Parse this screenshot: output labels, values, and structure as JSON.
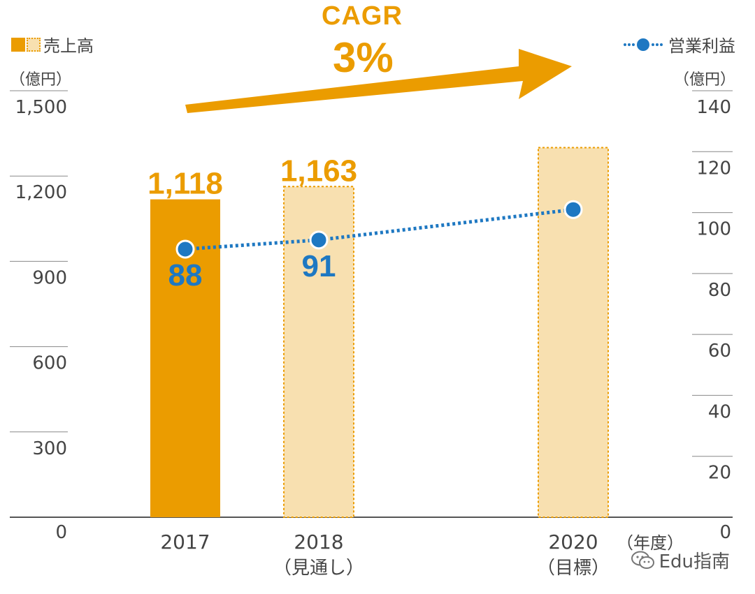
{
  "legend": {
    "sales": "売上高",
    "operating_profit": "営業利益"
  },
  "units": {
    "left": "（億円）",
    "right": "（億円）",
    "x": "（年度）"
  },
  "cagr": {
    "label": "CAGR",
    "value": "3%"
  },
  "watermark": {
    "text": "Edu指南",
    "icon": "wechat-icon"
  },
  "colors": {
    "actual_bar": "#eb9c00",
    "forecast_bar": "#f8e0b0",
    "line": "#1e78c2",
    "arrow": "#eb9c00"
  },
  "chart_data": {
    "type": "bar",
    "categories": [
      {
        "year": "2017",
        "sub": ""
      },
      {
        "year": "2018",
        "sub": "（見通し）"
      },
      {
        "year": "2020",
        "sub": "（目標）"
      }
    ],
    "series": [
      {
        "name": "売上高",
        "axis": "left",
        "values": [
          1118,
          1163,
          1300
        ],
        "labels": [
          "1,118",
          "1,163",
          ""
        ],
        "styles": [
          "solid",
          "forecast",
          "forecast"
        ]
      },
      {
        "name": "営業利益",
        "type": "line",
        "axis": "right",
        "values": [
          88,
          91,
          101
        ],
        "labels": [
          "88",
          "91",
          ""
        ]
      }
    ],
    "y_left": {
      "min": 0,
      "max": 1500,
      "ticks": [
        0,
        300,
        600,
        900,
        1200,
        1500
      ],
      "tick_labels": [
        "0",
        "300",
        "600",
        "900",
        "1,200",
        "1,500"
      ]
    },
    "y_right": {
      "min": 0,
      "max": 140,
      "ticks": [
        0,
        20,
        40,
        60,
        80,
        100,
        120,
        140
      ],
      "tick_labels": [
        "0",
        "20",
        "40",
        "60",
        "80",
        "100",
        "120",
        "140"
      ]
    },
    "grid": "short tick lines at axis sides"
  }
}
